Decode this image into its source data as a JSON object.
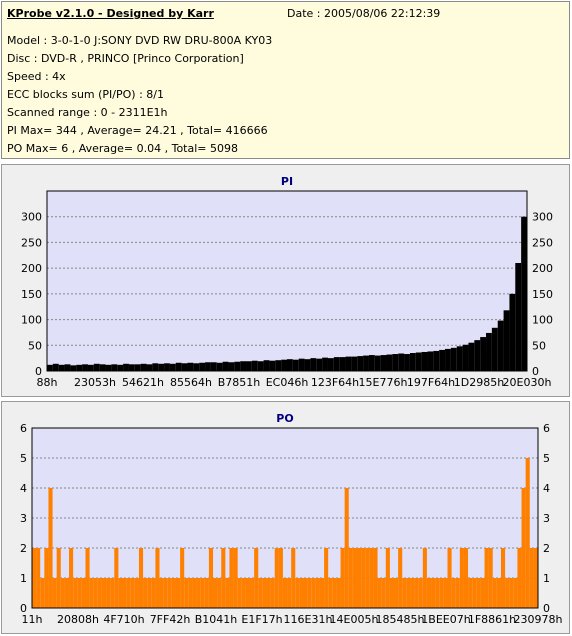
{
  "header": {
    "title": "KProbe v2.1.0 - Designed by Karr",
    "date": "Date : 2005/08/06 22:12:39",
    "lines": [
      "Model : 3-0-1-0 J:SONY    DVD RW DRU-800A  KY03",
      "Disc : DVD-R , PRINCO [Princo Corporation]",
      "Speed : 4x",
      "ECC blocks sum (PI/PO) : 8/1",
      "Scanned range : 0 - 2311E1h",
      "PI Max= 344 , Average= 24.21 , Total= 416666",
      "PO Max= 6 , Average= 0.04 , Total= 5098"
    ]
  },
  "colors": {
    "pi_series": "#000000",
    "po_series": "#ff8000",
    "plot_bg": "#e0e0f8",
    "panel_bg": "#efefef",
    "title_color": "#000080"
  },
  "chart_data": [
    {
      "type": "area",
      "title": "PI",
      "x_tick_labels": [
        "88h",
        "23053h",
        "54621h",
        "85564h",
        "B7851h",
        "EC046h",
        "123F64h",
        "15E776h",
        "197F64h",
        "1D2985h",
        "20E030h"
      ],
      "ylim": [
        0,
        350
      ],
      "y_ticks": [
        0,
        50,
        100,
        150,
        200,
        250,
        300
      ],
      "grid": true,
      "series": [
        {
          "values": [
            12,
            14,
            12,
            13,
            11,
            12,
            13,
            12,
            14,
            13,
            12,
            13,
            12,
            14,
            13,
            13,
            14,
            13,
            15,
            14,
            15,
            14,
            16,
            15,
            16,
            15,
            16,
            17,
            17,
            16,
            18,
            17,
            18,
            19,
            19,
            20,
            19,
            21,
            20,
            21,
            22,
            23,
            22,
            24,
            23,
            25,
            24,
            26,
            25,
            27,
            27,
            28,
            28,
            29,
            30,
            31,
            30,
            31,
            32,
            33,
            34,
            33,
            35,
            36,
            37,
            38,
            39,
            41,
            43,
            45,
            48,
            51,
            55,
            60,
            66,
            74,
            84,
            98,
            118,
            150,
            210,
            300
          ]
        }
      ]
    },
    {
      "type": "bar",
      "title": "PO",
      "x_tick_labels": [
        "11h",
        "20808h",
        "4F710h",
        "7FF42h",
        "B1041h",
        "E1F17h",
        "116E31h",
        "14E005h",
        "185485h",
        "1BEE07h",
        "1F8861h",
        "230978h"
      ],
      "ylim": [
        0,
        6
      ],
      "y_ticks": [
        0,
        1,
        2,
        3,
        4,
        5,
        6
      ],
      "grid": true,
      "series": [
        {
          "values": [
            2,
            2,
            1,
            2,
            4,
            1,
            2,
            1,
            1,
            2,
            1,
            1,
            1,
            2,
            1,
            1,
            1,
            1,
            1,
            1,
            2,
            1,
            1,
            1,
            1,
            1,
            2,
            1,
            1,
            1,
            2,
            1,
            1,
            1,
            1,
            1,
            2,
            1,
            1,
            1,
            1,
            1,
            1,
            2,
            1,
            1,
            2,
            1,
            2,
            2,
            1,
            1,
            1,
            1,
            2,
            1,
            1,
            1,
            1,
            2,
            2,
            1,
            1,
            2,
            1,
            1,
            1,
            1,
            1,
            1,
            1,
            2,
            1,
            1,
            1,
            2,
            4,
            2,
            2,
            2,
            2,
            2,
            2,
            2,
            1,
            1,
            2,
            1,
            1,
            2,
            1,
            1,
            1,
            1,
            1,
            2,
            1,
            1,
            1,
            1,
            1,
            2,
            1,
            1,
            2,
            2,
            1,
            1,
            1,
            1,
            2,
            2,
            1,
            1,
            2,
            1,
            1,
            1,
            2,
            4,
            5,
            2,
            2
          ]
        }
      ]
    }
  ]
}
